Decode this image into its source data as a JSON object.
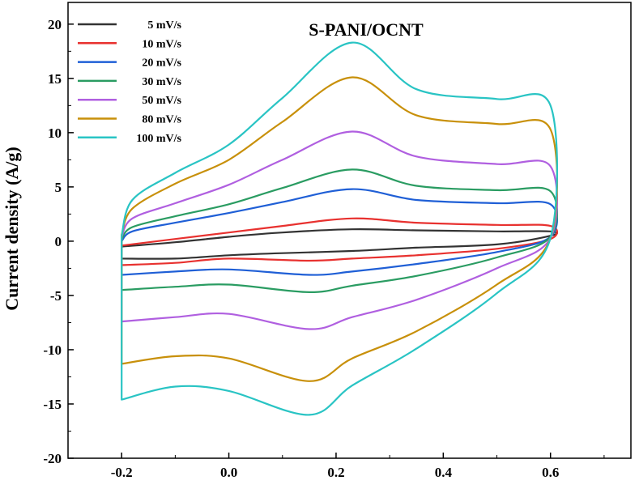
{
  "chart_data": {
    "type": "line",
    "title": "S-PANI/OCNT",
    "xlabel": "",
    "ylabel": "Current density (A/g)",
    "xlim": [
      -0.3,
      0.75
    ],
    "ylim": [
      -20,
      22
    ],
    "xticks": [
      -0.2,
      0.0,
      0.2,
      0.4,
      0.6
    ],
    "xtick_labels": [
      "-0.2",
      "0.0",
      "0.2",
      "0.4",
      "0.6"
    ],
    "yticks": [
      -20,
      -15,
      -10,
      -5,
      0,
      5,
      10,
      15,
      20
    ],
    "ytick_labels": [
      "-20",
      "-15",
      "-10",
      "-5",
      "0",
      "5",
      "10",
      "15",
      "20"
    ],
    "grid": false,
    "legend_position": "top-left",
    "series": [
      {
        "name": "5 mV/s",
        "color": "#333333",
        "anodic": [
          [
            -0.2,
            -0.5
          ],
          [
            -0.1,
            -0.1
          ],
          [
            0.0,
            0.4
          ],
          [
            0.1,
            0.8
          ],
          [
            0.23,
            1.1
          ],
          [
            0.35,
            1.0
          ],
          [
            0.5,
            0.9
          ],
          [
            0.6,
            0.9
          ]
        ],
        "cathodic": [
          [
            0.6,
            0.5
          ],
          [
            0.5,
            -0.3
          ],
          [
            0.35,
            -0.6
          ],
          [
            0.23,
            -0.9
          ],
          [
            0.1,
            -1.1
          ],
          [
            0.0,
            -1.3
          ],
          [
            -0.1,
            -1.6
          ],
          [
            -0.2,
            -1.6
          ]
        ]
      },
      {
        "name": "10 mV/s",
        "color": "#e8312f",
        "anodic": [
          [
            -0.2,
            -0.4
          ],
          [
            -0.1,
            0.2
          ],
          [
            0.0,
            0.8
          ],
          [
            0.1,
            1.4
          ],
          [
            0.23,
            2.1
          ],
          [
            0.35,
            1.7
          ],
          [
            0.5,
            1.5
          ],
          [
            0.6,
            1.4
          ]
        ],
        "cathodic": [
          [
            0.6,
            0.2
          ],
          [
            0.5,
            -0.7
          ],
          [
            0.35,
            -1.3
          ],
          [
            0.23,
            -1.6
          ],
          [
            0.15,
            -1.8
          ],
          [
            0.0,
            -1.6
          ],
          [
            -0.1,
            -2.0
          ],
          [
            -0.2,
            -2.2
          ]
        ]
      },
      {
        "name": "20 mV/s",
        "color": "#1f5fd6",
        "anodic": [
          [
            -0.2,
            0.0
          ],
          [
            -0.18,
            0.9
          ],
          [
            -0.1,
            1.7
          ],
          [
            0.0,
            2.6
          ],
          [
            0.1,
            3.6
          ],
          [
            0.23,
            4.8
          ],
          [
            0.35,
            3.8
          ],
          [
            0.5,
            3.5
          ],
          [
            0.6,
            3.4
          ]
        ],
        "cathodic": [
          [
            0.6,
            0.4
          ],
          [
            0.5,
            -1.0
          ],
          [
            0.35,
            -2.1
          ],
          [
            0.23,
            -2.8
          ],
          [
            0.15,
            -3.1
          ],
          [
            0.0,
            -2.6
          ],
          [
            -0.1,
            -2.8
          ],
          [
            -0.2,
            -3.1
          ]
        ]
      },
      {
        "name": "30 mV/s",
        "color": "#2a9c62",
        "anodic": [
          [
            -0.2,
            0.2
          ],
          [
            -0.18,
            1.3
          ],
          [
            -0.1,
            2.3
          ],
          [
            0.0,
            3.4
          ],
          [
            0.1,
            4.9
          ],
          [
            0.23,
            6.6
          ],
          [
            0.35,
            5.1
          ],
          [
            0.5,
            4.7
          ],
          [
            0.6,
            4.6
          ]
        ],
        "cathodic": [
          [
            0.6,
            0.4
          ],
          [
            0.5,
            -1.5
          ],
          [
            0.35,
            -3.2
          ],
          [
            0.23,
            -4.1
          ],
          [
            0.15,
            -4.7
          ],
          [
            0.0,
            -4.0
          ],
          [
            -0.1,
            -4.2
          ],
          [
            -0.2,
            -4.5
          ]
        ]
      },
      {
        "name": "50 mV/s",
        "color": "#b05fe0",
        "anodic": [
          [
            -0.2,
            0.4
          ],
          [
            -0.18,
            2.1
          ],
          [
            -0.1,
            3.5
          ],
          [
            0.0,
            5.2
          ],
          [
            0.1,
            7.5
          ],
          [
            0.23,
            10.1
          ],
          [
            0.35,
            7.8
          ],
          [
            0.5,
            7.1
          ],
          [
            0.6,
            6.9
          ]
        ],
        "cathodic": [
          [
            0.6,
            0.3
          ],
          [
            0.5,
            -2.5
          ],
          [
            0.35,
            -5.4
          ],
          [
            0.23,
            -7.0
          ],
          [
            0.15,
            -8.1
          ],
          [
            0.0,
            -6.7
          ],
          [
            -0.1,
            -7.0
          ],
          [
            -0.2,
            -7.4
          ]
        ]
      },
      {
        "name": "80 mV/s",
        "color": "#c8900a",
        "anodic": [
          [
            -0.2,
            0.6
          ],
          [
            -0.18,
            3.0
          ],
          [
            -0.1,
            5.3
          ],
          [
            0.0,
            7.5
          ],
          [
            0.1,
            11.0
          ],
          [
            0.23,
            15.1
          ],
          [
            0.35,
            11.6
          ],
          [
            0.5,
            10.8
          ],
          [
            0.6,
            10.3
          ]
        ],
        "cathodic": [
          [
            0.6,
            0.3
          ],
          [
            0.5,
            -4.0
          ],
          [
            0.35,
            -8.3
          ],
          [
            0.23,
            -10.8
          ],
          [
            0.15,
            -12.9
          ],
          [
            0.0,
            -10.8
          ],
          [
            -0.1,
            -10.6
          ],
          [
            -0.2,
            -11.3
          ]
        ]
      },
      {
        "name": "100 mV/s",
        "color": "#29c4c4",
        "anodic": [
          [
            -0.2,
            0.5
          ],
          [
            -0.18,
            3.8
          ],
          [
            -0.1,
            6.3
          ],
          [
            0.0,
            8.9
          ],
          [
            0.1,
            13.2
          ],
          [
            0.23,
            18.3
          ],
          [
            0.35,
            14.0
          ],
          [
            0.5,
            13.1
          ],
          [
            0.6,
            12.5
          ]
        ],
        "cathodic": [
          [
            0.6,
            0.3
          ],
          [
            0.5,
            -4.8
          ],
          [
            0.35,
            -9.9
          ],
          [
            0.23,
            -13.3
          ],
          [
            0.15,
            -16.0
          ],
          [
            0.0,
            -13.8
          ],
          [
            -0.1,
            -13.4
          ],
          [
            -0.2,
            -14.6
          ]
        ]
      }
    ]
  }
}
